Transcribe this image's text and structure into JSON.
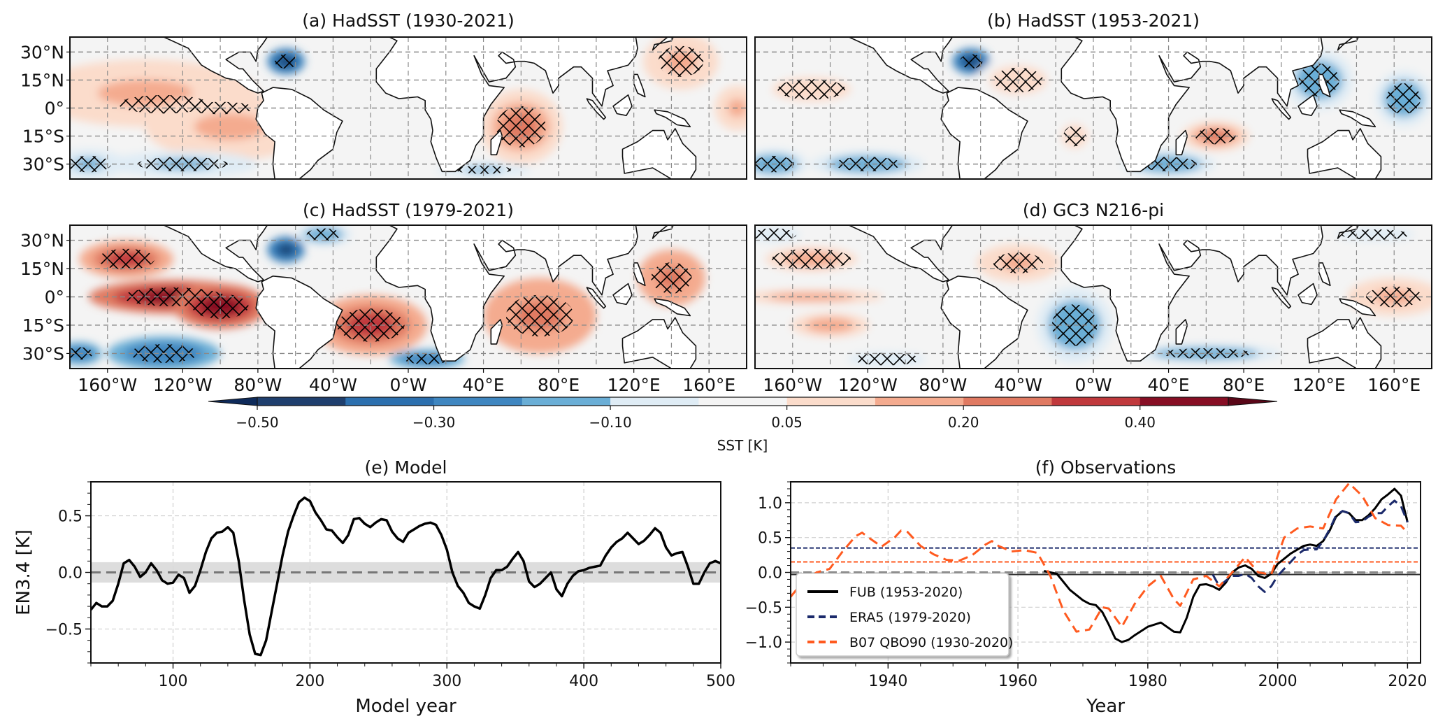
{
  "figure": {
    "colorbar": {
      "label": "SST [K]",
      "levels": [
        -0.5,
        -0.4,
        -0.3,
        -0.2,
        -0.1,
        -0.05,
        0.05,
        0.1,
        0.2,
        0.3,
        0.4,
        0.5
      ],
      "tick_labels": [
        "−0.50",
        "−0.30",
        "−0.10",
        "0.05",
        "0.20",
        "0.40"
      ],
      "tick_values": [
        -0.5,
        -0.3,
        -0.1,
        0.05,
        0.2,
        0.4
      ],
      "colors": [
        "#1f3f6e",
        "#2c6fae",
        "#3f86c0",
        "#6aaed6",
        "#b6d6ea",
        "#dfecf5",
        "#f4f4f4",
        "#fbdccb",
        "#f4ab8f",
        "#e07a62",
        "#c0393c",
        "#870e24"
      ],
      "extend": "both",
      "under_color": "#0e2a5a",
      "over_color": "#5a0718"
    },
    "map_axes": {
      "lat_labels": [
        "30°N",
        "15°N",
        "0°",
        "15°S",
        "30°S"
      ],
      "lat_values": [
        30,
        15,
        0,
        -15,
        -30
      ],
      "lat_range": [
        -38,
        38
      ],
      "lon_labels": [
        "160°W",
        "120°W",
        "80°W",
        "40°W",
        "0°W",
        "40°E",
        "80°E",
        "120°E",
        "160°E"
      ],
      "hatch_meaning": "statistically significant"
    }
  },
  "chart_data": [
    {
      "type": "heatmap",
      "panel": "a",
      "title": "(a) HadSST (1930-2021)",
      "variable": "SST regression",
      "features": [
        {
          "region": "equatorial central-east Pacific",
          "value": 0.35,
          "hatched": true
        },
        {
          "region": "southeast Pacific",
          "value": 0.12,
          "hatched": false
        },
        {
          "region": "Gulf of Mexico",
          "value": -0.45,
          "hatched": true
        },
        {
          "region": "western Indian Ocean",
          "value": 0.22,
          "hatched": true
        },
        {
          "region": "northwest Pacific",
          "value": 0.12,
          "hatched": true
        },
        {
          "region": "South Pacific 30S",
          "value": -0.12,
          "hatched": true
        }
      ]
    },
    {
      "type": "heatmap",
      "panel": "b",
      "title": "(b) HadSST (1953-2021)",
      "variable": "SST regression",
      "features": [
        {
          "region": "Gulf of Mexico",
          "value": -0.45,
          "hatched": true
        },
        {
          "region": "tropical Atlantic north",
          "value": 0.08,
          "hatched": true
        },
        {
          "region": "South Indian Ocean",
          "value": 0.22,
          "hatched": true
        },
        {
          "region": "South Atlantic/Indian 30S",
          "value": -0.18,
          "hatched": true
        },
        {
          "region": "South China Sea / Maritime continent",
          "value": -0.15,
          "hatched": true
        },
        {
          "region": "South Pacific 30S",
          "value": -0.15,
          "hatched": true
        }
      ]
    },
    {
      "type": "heatmap",
      "panel": "c",
      "title": "(c) HadSST (1979-2021)",
      "variable": "SST regression",
      "features": [
        {
          "region": "equatorial east Pacific",
          "value": 0.45,
          "hatched": true
        },
        {
          "region": "tropical South Atlantic",
          "value": 0.3,
          "hatched": true
        },
        {
          "region": "Indian Ocean",
          "value": 0.25,
          "hatched": true
        },
        {
          "region": "Gulf of Mexico",
          "value": -0.45,
          "hatched": false
        },
        {
          "region": "South Pacific 30S",
          "value": -0.3,
          "hatched": true
        },
        {
          "region": "North Atlantic 35N",
          "value": -0.15,
          "hatched": true
        }
      ]
    },
    {
      "type": "heatmap",
      "panel": "d",
      "title": "(d) GC3 N216-pi",
      "variable": "SST regression",
      "features": [
        {
          "region": "equatorial central Pacific",
          "value": 0.1,
          "hatched": false
        },
        {
          "region": "subtropical North Pacific",
          "value": 0.1,
          "hatched": true
        },
        {
          "region": "tropical North Atlantic",
          "value": 0.12,
          "hatched": true
        },
        {
          "region": "South Atlantic",
          "value": -0.15,
          "hatched": true
        },
        {
          "region": "western Pacific equator",
          "value": 0.12,
          "hatched": true
        },
        {
          "region": "North Pacific 35N",
          "value": -0.08,
          "hatched": true
        }
      ]
    },
    {
      "type": "line",
      "panel": "e",
      "title": "(e) Model",
      "xlabel": "Model year",
      "ylabel": "EN3.4 [K]",
      "xlim": [
        40,
        500
      ],
      "ylim": [
        -0.8,
        0.8
      ],
      "xticks": [
        100,
        200,
        300,
        400,
        500
      ],
      "xtick_labels": [
        "100",
        "200",
        "300",
        "400",
        "500"
      ],
      "yticks": [
        -0.5,
        0.0,
        0.5
      ],
      "ytick_labels": [
        "−0.5",
        "0.0",
        "0.5"
      ],
      "grid": true,
      "zero_line": {
        "value": 0.0,
        "style": "dashed",
        "color": "#777777"
      },
      "shaded_band": [
        -0.09,
        0.09
      ],
      "series": [
        {
          "name": "Model",
          "color": "#000000",
          "style": "solid",
          "x": [
            40,
            44,
            48,
            52,
            56,
            60,
            64,
            68,
            72,
            76,
            80,
            84,
            88,
            92,
            96,
            100,
            104,
            108,
            112,
            116,
            120,
            124,
            128,
            132,
            136,
            140,
            144,
            148,
            152,
            156,
            160,
            164,
            168,
            172,
            176,
            180,
            184,
            188,
            192,
            196,
            200,
            204,
            208,
            212,
            216,
            220,
            224,
            228,
            232,
            236,
            240,
            244,
            248,
            252,
            256,
            260,
            264,
            268,
            272,
            276,
            280,
            284,
            288,
            292,
            296,
            300,
            304,
            308,
            312,
            316,
            320,
            324,
            328,
            332,
            336,
            340,
            344,
            348,
            352,
            356,
            360,
            364,
            368,
            372,
            376,
            380,
            384,
            388,
            392,
            396,
            400,
            404,
            408,
            412,
            416,
            420,
            424,
            428,
            432,
            436,
            440,
            444,
            448,
            452,
            456,
            460,
            464,
            468,
            472,
            476,
            480,
            484,
            488,
            492,
            496,
            500
          ],
          "y": [
            -0.33,
            -0.27,
            -0.3,
            -0.3,
            -0.25,
            -0.1,
            0.08,
            0.11,
            0.05,
            -0.04,
            0.0,
            0.08,
            0.02,
            -0.07,
            -0.1,
            -0.09,
            -0.02,
            -0.05,
            -0.18,
            -0.12,
            0.02,
            0.18,
            0.3,
            0.35,
            0.36,
            0.4,
            0.35,
            0.1,
            -0.25,
            -0.55,
            -0.72,
            -0.73,
            -0.6,
            -0.35,
            -0.1,
            0.15,
            0.36,
            0.5,
            0.62,
            0.66,
            0.63,
            0.53,
            0.46,
            0.38,
            0.37,
            0.31,
            0.26,
            0.33,
            0.47,
            0.48,
            0.43,
            0.4,
            0.44,
            0.47,
            0.46,
            0.36,
            0.3,
            0.27,
            0.35,
            0.38,
            0.41,
            0.43,
            0.44,
            0.42,
            0.33,
            0.2,
            0.0,
            -0.12,
            -0.18,
            -0.27,
            -0.3,
            -0.32,
            -0.2,
            -0.05,
            0.02,
            0.02,
            0.05,
            0.12,
            0.18,
            0.1,
            -0.08,
            -0.13,
            -0.1,
            -0.05,
            0.0,
            -0.15,
            -0.21,
            -0.1,
            -0.03,
            0.01,
            0.02,
            0.04,
            0.05,
            0.06,
            0.15,
            0.22,
            0.27,
            0.3,
            0.35,
            0.3,
            0.25,
            0.28,
            0.33,
            0.39,
            0.35,
            0.22,
            0.15,
            0.17,
            0.18,
            0.05,
            -0.1,
            -0.1,
            0.0,
            0.08,
            0.1,
            0.08
          ]
        }
      ]
    },
    {
      "type": "line",
      "panel": "f",
      "title": "(f) Observations",
      "xlabel": "Year",
      "ylabel": "",
      "xlim": [
        1925,
        2022
      ],
      "ylim": [
        -1.3,
        1.3
      ],
      "xticks": [
        1940,
        1960,
        1980,
        2000,
        2020
      ],
      "xtick_labels": [
        "1940",
        "1960",
        "1980",
        "2000",
        "2020"
      ],
      "yticks": [
        -1.0,
        -0.5,
        0.0,
        0.5,
        1.0
      ],
      "ytick_labels": [
        "−1.0",
        "−0.5",
        "0.0",
        "0.5",
        "1.0"
      ],
      "grid": true,
      "legend": {
        "position": "lower-left",
        "entries": [
          "FUB (1953-2020)",
          "ERA5 (1979-2020)",
          "B07 QBO90 (1930-2020)"
        ]
      },
      "reference_lines": [
        {
          "value": 0.35,
          "color": "#1b2a6b",
          "style": "dotted"
        },
        {
          "value": 0.15,
          "color": "#ff5a1f",
          "style": "dotted"
        },
        {
          "value": 0.0,
          "color": "#888888",
          "style": "dashed"
        },
        {
          "value": -0.03,
          "color": "#333333",
          "style": "solid"
        }
      ],
      "series": [
        {
          "name": "FUB (1953-2020)",
          "color": "#000000",
          "style": "solid",
          "x": [
            1964,
            1966,
            1968,
            1970,
            1971,
            1972,
            1973,
            1974,
            1975,
            1976,
            1977,
            1978,
            1980,
            1982,
            1984,
            1985,
            1986,
            1987,
            1988,
            1989,
            1990,
            1991,
            1992,
            1993,
            1994,
            1995,
            1996,
            1997,
            1998,
            1999,
            2000,
            2002,
            2004,
            2005,
            2006,
            2007,
            2008,
            2009,
            2010,
            2011,
            2012,
            2013,
            2014,
            2015,
            2016,
            2017,
            2018,
            2019,
            2020
          ],
          "y": [
            0.02,
            -0.02,
            -0.25,
            -0.4,
            -0.45,
            -0.47,
            -0.57,
            -0.75,
            -0.95,
            -1.0,
            -0.97,
            -0.9,
            -0.78,
            -0.72,
            -0.85,
            -0.86,
            -0.65,
            -0.35,
            -0.18,
            -0.17,
            -0.2,
            -0.25,
            -0.15,
            0.0,
            0.07,
            0.1,
            0.05,
            -0.05,
            -0.08,
            -0.02,
            0.12,
            0.27,
            0.38,
            0.4,
            0.38,
            0.45,
            0.6,
            0.8,
            0.88,
            0.85,
            0.75,
            0.75,
            0.82,
            0.92,
            1.05,
            1.12,
            1.2,
            1.1,
            0.72
          ]
        },
        {
          "name": "ERA5 (1979-2020)",
          "color": "#1b2a6b",
          "style": "dashed",
          "x": [
            1990,
            1991,
            1992,
            1993,
            1994,
            1995,
            1996,
            1997,
            1998,
            1999,
            2000,
            2001,
            2002,
            2003,
            2004,
            2005,
            2006,
            2007,
            2008,
            2009,
            2010,
            2011,
            2012,
            2013,
            2014,
            2015,
            2016,
            2017,
            2018,
            2019,
            2020
          ],
          "y": [
            -0.03,
            -0.2,
            -0.12,
            -0.05,
            -0.05,
            -0.02,
            -0.08,
            -0.2,
            -0.28,
            -0.2,
            -0.05,
            0.05,
            0.15,
            0.25,
            0.32,
            0.33,
            0.33,
            0.45,
            0.62,
            0.82,
            0.88,
            0.85,
            0.72,
            0.73,
            0.8,
            0.85,
            0.85,
            0.95,
            1.03,
            0.95,
            0.72
          ]
        },
        {
          "name": "B07 QBO90 (1930-2020)",
          "color": "#ff5a1f",
          "style": "dashed",
          "x": [
            1925,
            1927,
            1929,
            1931,
            1933,
            1935,
            1936,
            1937,
            1939,
            1941,
            1942,
            1943,
            1945,
            1947,
            1949,
            1951,
            1953,
            1955,
            1956,
            1957,
            1959,
            1961,
            1963,
            1965,
            1967,
            1969,
            1971,
            1973,
            1974,
            1975,
            1976,
            1978,
            1980,
            1982,
            1984,
            1985,
            1987,
            1989,
            1991,
            1993,
            1995,
            1997,
            1999,
            2001,
            2003,
            2005,
            2007,
            2009,
            2011,
            2013,
            2015,
            2017,
            2019,
            2020
          ],
          "y": [
            -0.35,
            -0.12,
            0.0,
            0.05,
            0.3,
            0.52,
            0.57,
            0.5,
            0.37,
            0.5,
            0.6,
            0.58,
            0.38,
            0.26,
            0.18,
            0.17,
            0.25,
            0.4,
            0.45,
            0.38,
            0.3,
            0.32,
            0.28,
            -0.05,
            -0.55,
            -0.85,
            -0.82,
            -0.5,
            -0.52,
            -0.65,
            -0.78,
            -0.45,
            -0.2,
            -0.05,
            -0.38,
            -0.48,
            -0.1,
            -0.05,
            -0.2,
            0.0,
            0.22,
            0.0,
            -0.03,
            0.5,
            0.63,
            0.66,
            0.63,
            1.05,
            1.28,
            1.1,
            0.78,
            0.68,
            0.67,
            0.57
          ]
        }
      ]
    }
  ]
}
